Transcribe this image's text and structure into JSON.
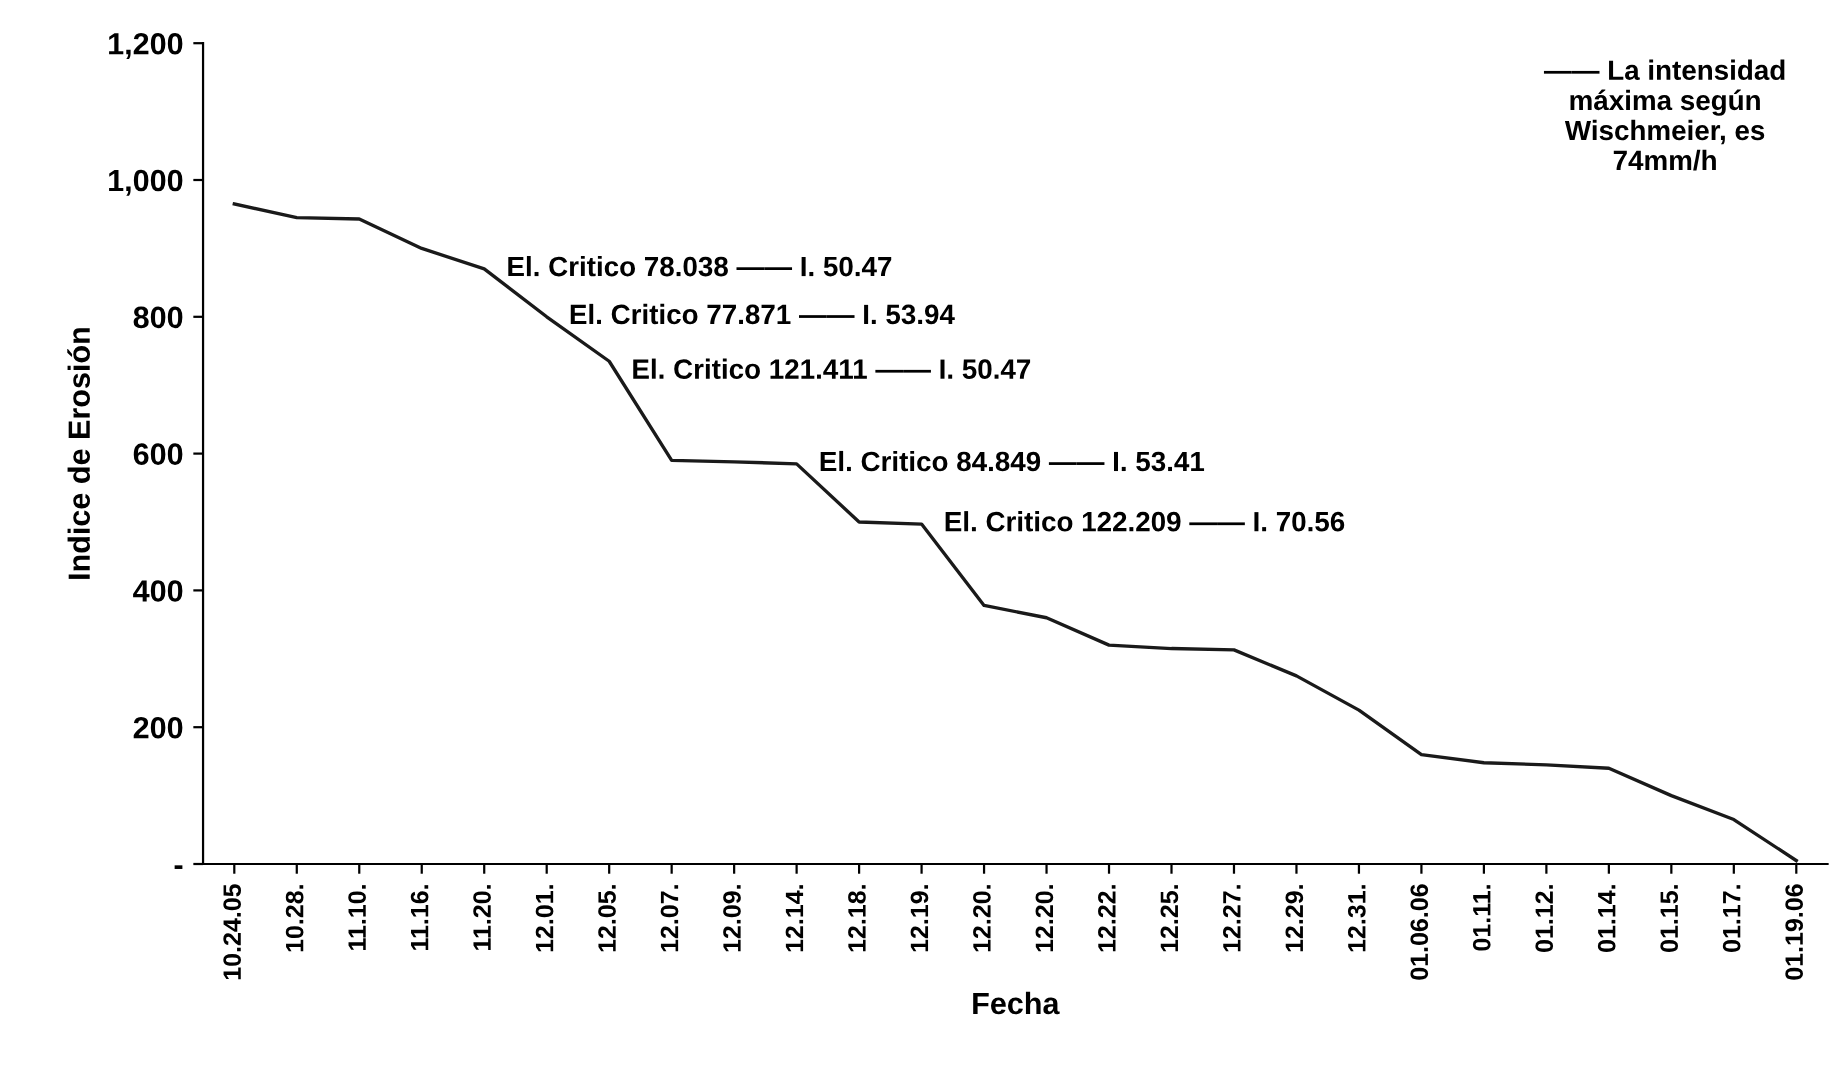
{
  "chart_data": {
    "type": "line",
    "xlabel": "Fecha",
    "ylabel": "Indice de Erosión",
    "categories": [
      "10.24.05",
      "10.28.",
      "11.10.",
      "11.16.",
      "11.20.",
      "12.01.",
      "12.05.",
      "12.07.",
      "12.09.",
      "12.14.",
      "12.18.",
      "12.19.",
      "12.20.",
      "12.20.",
      "12.22.",
      "12.25.",
      "12.27.",
      "12.29.",
      "12.31.",
      "01.06.06",
      "01.11.",
      "01.12.",
      "01.14.",
      "01.15.",
      "01.17.",
      "01.19.06"
    ],
    "series": [
      {
        "color": "#1a1a1a",
        "values": [
          965,
          945,
          943,
          900,
          870,
          800,
          735,
          590,
          588,
          585,
          500,
          497,
          378,
          360,
          320,
          315,
          313,
          275,
          225,
          160,
          148,
          145,
          140,
          100,
          65,
          5
        ]
      }
    ],
    "ylim": [
      0,
      1200
    ],
    "yticks": [
      {
        "value": 0,
        "label": "-"
      },
      200,
      400,
      600,
      800,
      {
        "value": 1000,
        "label": "1,000"
      },
      {
        "value": 1200,
        "label": "1,200"
      }
    ],
    "grid": false,
    "marker": "none",
    "line_style": "solid",
    "annotations": [
      {
        "text": "El. Critico 78.038 —— I. 50.47",
        "x": "11.20.",
        "y": 870
      },
      {
        "text": "El. Critico 77.871 —— I. 53.94",
        "x": "12.01.",
        "y": 800
      },
      {
        "text": "El. Critico 121.411 —— I. 50.47",
        "x": "12.05.",
        "y": 720
      },
      {
        "text": "El. Critico 84.849 —— I. 53.41",
        "x": "12.14.",
        "y": 585
      },
      {
        "text": "El. Critico 122.209 —— I. 70.56",
        "x": "12.19.",
        "y": 497
      },
      "—— La intensidad\nmáxima según\nWischmeier, es\n74mm/h"
    ]
  }
}
